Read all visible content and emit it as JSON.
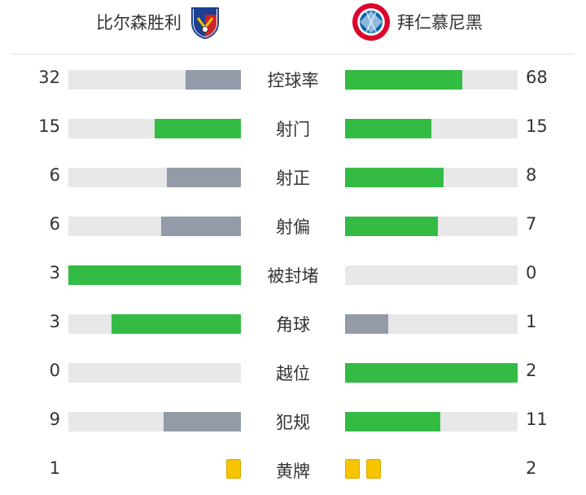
{
  "home": {
    "name": "比尔森胜利",
    "logo": "viktoria-plzen-crest"
  },
  "away": {
    "name": "拜仁慕尼黑",
    "logo": "bayern-munich-crest"
  },
  "colors": {
    "higher": "#33bb44",
    "lower": "#939aa8",
    "track": "#e8e8e8",
    "card": "#f6c500"
  },
  "stats": [
    {
      "label": "控球率",
      "home": "32",
      "away": "68",
      "home_pct": 0.32,
      "away_pct": 0.68,
      "home_color": "lower",
      "away_color": "higher"
    },
    {
      "label": "射门",
      "home": "15",
      "away": "15",
      "home_pct": 0.5,
      "away_pct": 0.5,
      "home_color": "higher",
      "away_color": "higher"
    },
    {
      "label": "射正",
      "home": "6",
      "away": "8",
      "home_pct": 0.43,
      "away_pct": 0.57,
      "home_color": "lower",
      "away_color": "higher"
    },
    {
      "label": "射偏",
      "home": "6",
      "away": "7",
      "home_pct": 0.46,
      "away_pct": 0.54,
      "home_color": "lower",
      "away_color": "higher"
    },
    {
      "label": "被封堵",
      "home": "3",
      "away": "0",
      "home_pct": 1.0,
      "away_pct": 0.0,
      "home_color": "higher",
      "away_color": "lower"
    },
    {
      "label": "角球",
      "home": "3",
      "away": "1",
      "home_pct": 0.75,
      "away_pct": 0.25,
      "home_color": "higher",
      "away_color": "lower"
    },
    {
      "label": "越位",
      "home": "0",
      "away": "2",
      "home_pct": 0.0,
      "away_pct": 1.0,
      "home_color": "lower",
      "away_color": "higher"
    },
    {
      "label": "犯规",
      "home": "9",
      "away": "11",
      "home_pct": 0.45,
      "away_pct": 0.55,
      "home_color": "lower",
      "away_color": "higher"
    }
  ],
  "cards": {
    "label": "黄牌",
    "home": "1",
    "away": "2",
    "home_count": 1,
    "away_count": 2
  }
}
